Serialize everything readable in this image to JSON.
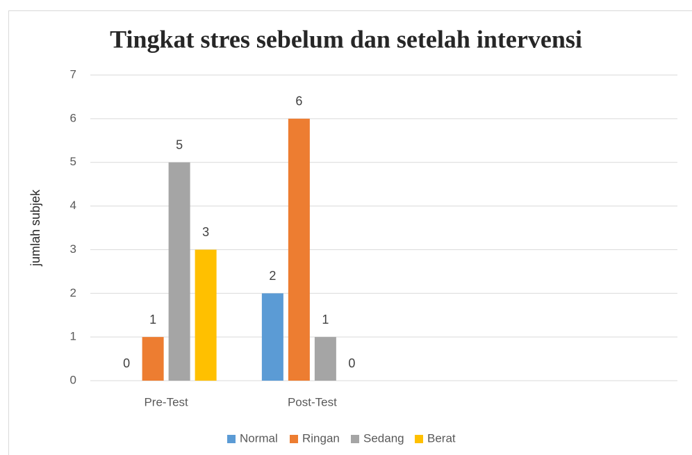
{
  "chart_data": {
    "type": "bar",
    "title": "Tingkat stres sebelum dan setelah intervensi",
    "y_label": "jumlah subjek",
    "categories": [
      "Pre-Test",
      "Post-Test",
      null,
      null
    ],
    "series": [
      {
        "name": "Normal",
        "color": "#5b9bd5",
        "values": [
          0,
          2,
          null,
          null
        ]
      },
      {
        "name": "Ringan",
        "color": "#ed7d31",
        "values": [
          1,
          6,
          null,
          null
        ]
      },
      {
        "name": "Sedang",
        "color": "#a5a5a5",
        "values": [
          5,
          1,
          null,
          null
        ]
      },
      {
        "name": "Berat",
        "color": "#ffc000",
        "values": [
          3,
          0,
          null,
          null
        ]
      }
    ],
    "ylim": [
      0,
      7
    ],
    "yticks": [
      0,
      1,
      2,
      3,
      4,
      5,
      6,
      7
    ],
    "grid": true,
    "legend": "bottom"
  }
}
